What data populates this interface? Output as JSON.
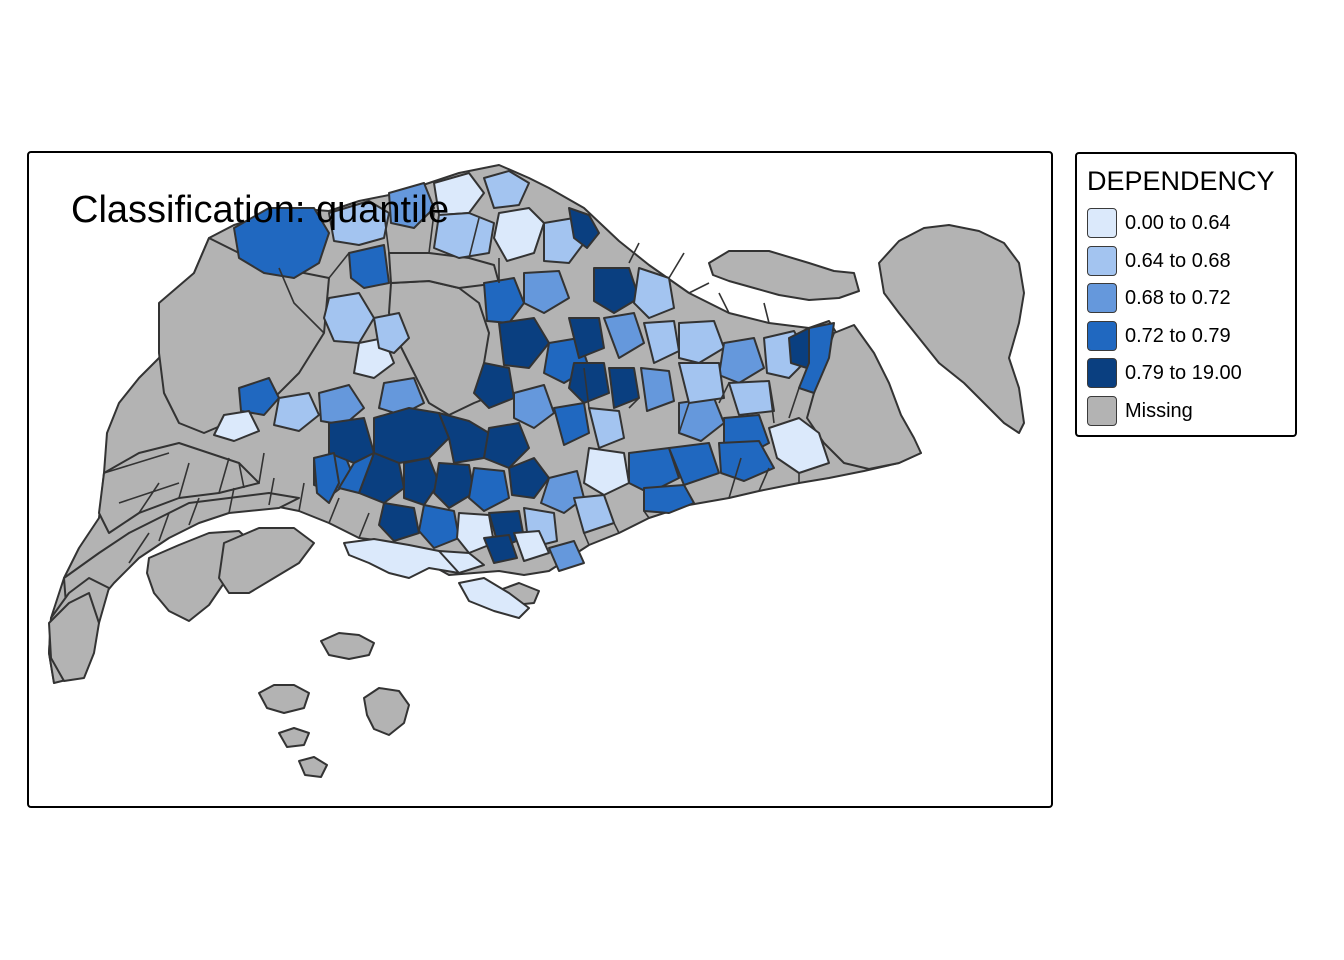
{
  "map": {
    "title": "Classification: quantile"
  },
  "legend": {
    "title": "DEPENDENCY",
    "items": [
      {
        "label": "0.00 to 0.64",
        "color": "#dbe9fb"
      },
      {
        "label": "0.64 to 0.68",
        "color": "#a3c4f0"
      },
      {
        "label": "0.68 to 0.72",
        "color": "#6598dc"
      },
      {
        "label": "0.72 to 0.79",
        "color": "#2068c0"
      },
      {
        "label": "0.79 to 19.00",
        "color": "#0a3f80"
      },
      {
        "label": "Missing",
        "color": "#b3b3b3"
      }
    ]
  },
  "colors": {
    "missing": "#b3b3b3",
    "outline": "#333333",
    "frame": "#000000"
  }
}
